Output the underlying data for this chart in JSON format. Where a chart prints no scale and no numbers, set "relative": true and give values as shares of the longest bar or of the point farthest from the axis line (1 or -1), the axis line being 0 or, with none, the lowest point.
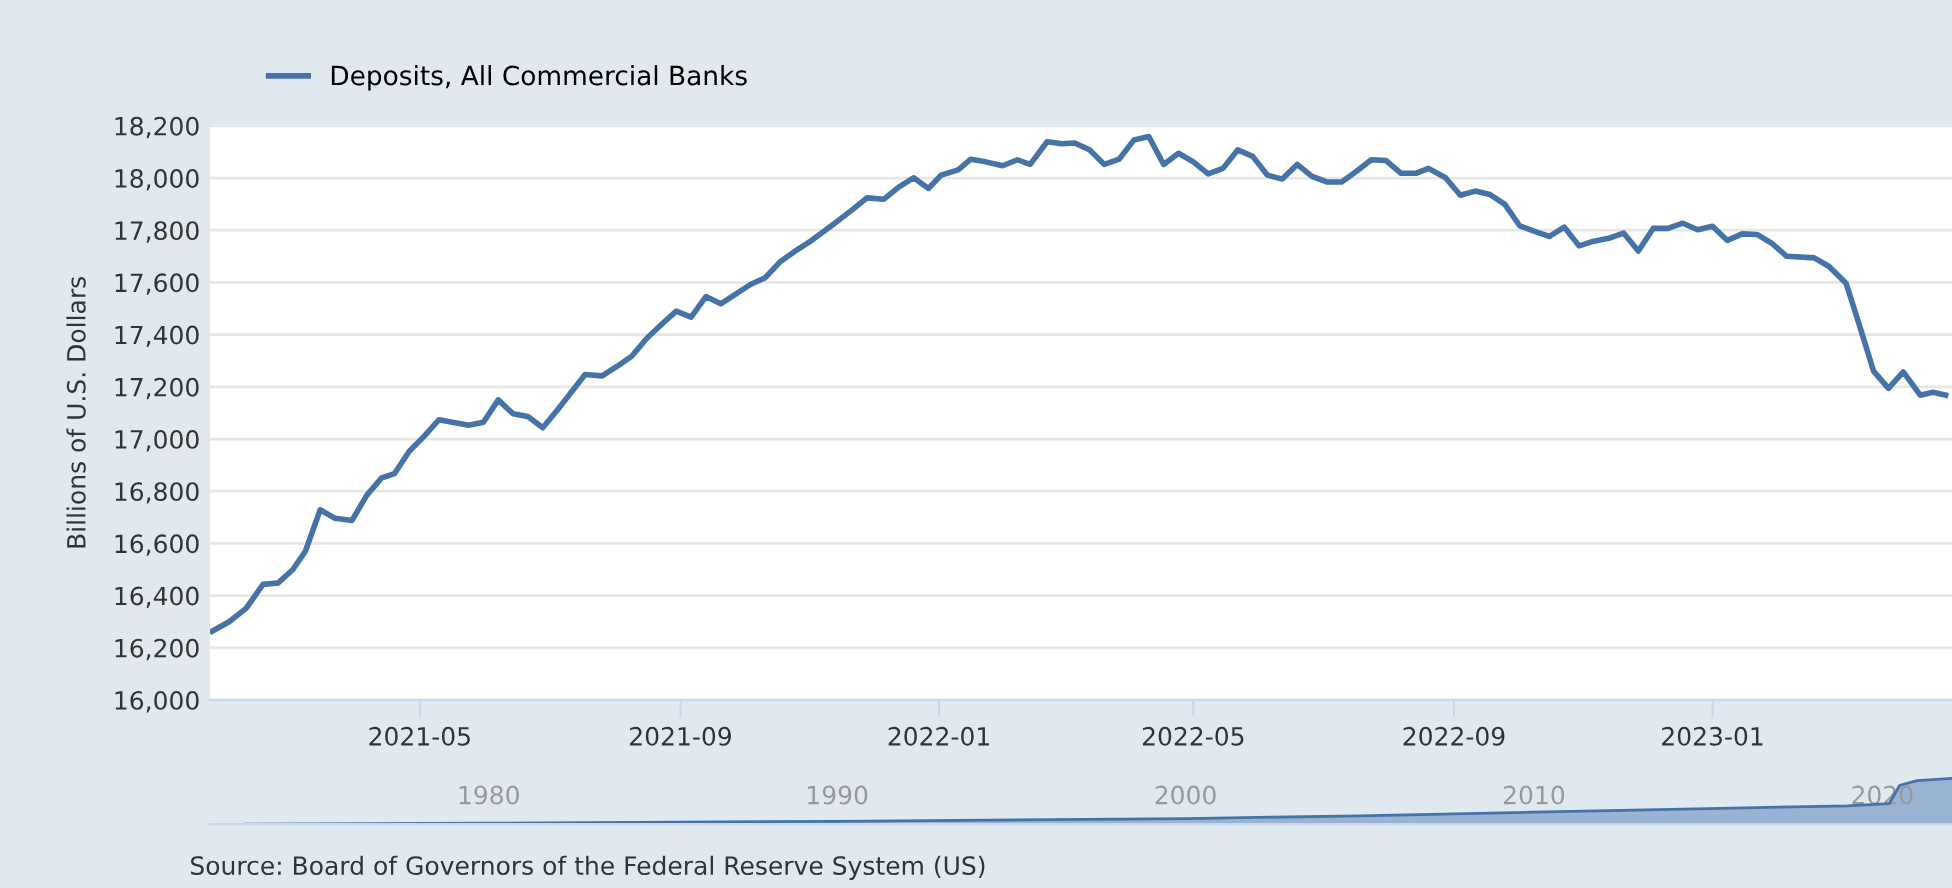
{
  "chart_data": [
    {
      "type": "line",
      "ylabel": "Billions of U.S. Dollars",
      "legend": "top left",
      "x": [
        "2021-01-23",
        "2021-01-31",
        "2021-02-08",
        "2021-02-16",
        "2021-02-23",
        "2021-03-02",
        "2021-03-08",
        "2021-03-15",
        "2021-03-22",
        "2021-03-30",
        "2021-04-06",
        "2021-04-13",
        "2021-04-19",
        "2021-04-26",
        "2021-05-03",
        "2021-05-10",
        "2021-05-24",
        "2021-05-31",
        "2021-06-07",
        "2021-06-14",
        "2021-06-21",
        "2021-06-28",
        "2021-07-05",
        "2021-07-18",
        "2021-07-26",
        "2021-08-02",
        "2021-08-09",
        "2021-08-16",
        "2021-08-23",
        "2021-08-30",
        "2021-09-06",
        "2021-09-13",
        "2021-09-20",
        "2021-10-04",
        "2021-10-11",
        "2021-10-18",
        "2021-10-26",
        "2021-11-01",
        "2021-11-12",
        "2021-11-21",
        "2021-11-28",
        "2021-12-06",
        "2021-12-13",
        "2021-12-20",
        "2021-12-27",
        "2022-01-02",
        "2022-01-10",
        "2022-01-16",
        "2022-01-23",
        "2022-01-31",
        "2022-02-07",
        "2022-02-13",
        "2022-02-21",
        "2022-02-28",
        "2022-03-06",
        "2022-03-13",
        "2022-03-20",
        "2022-03-27",
        "2022-04-03",
        "2022-04-10",
        "2022-04-17",
        "2022-04-24",
        "2022-05-01",
        "2022-05-08",
        "2022-05-15",
        "2022-05-22",
        "2022-05-29",
        "2022-06-05",
        "2022-06-12",
        "2022-06-19",
        "2022-06-26",
        "2022-07-03",
        "2022-07-10",
        "2022-07-17",
        "2022-07-24",
        "2022-07-31",
        "2022-08-07",
        "2022-08-14",
        "2022-08-20",
        "2022-08-28",
        "2022-09-04",
        "2022-09-11",
        "2022-09-18",
        "2022-09-25",
        "2022-10-02",
        "2022-10-09",
        "2022-10-16",
        "2022-10-23",
        "2022-10-30",
        "2022-11-06",
        "2022-11-13",
        "2022-11-20",
        "2022-11-27",
        "2022-12-04",
        "2022-12-11",
        "2022-12-18",
        "2022-12-25",
        "2023-01-01",
        "2023-01-08",
        "2023-01-15",
        "2023-01-22",
        "2023-01-29",
        "2023-02-05",
        "2023-02-18",
        "2023-02-25",
        "2023-03-05",
        "2023-03-11",
        "2023-03-18",
        "2023-03-25",
        "2023-04-01",
        "2023-04-09",
        "2023-04-15",
        "2023-04-21"
      ],
      "series": [
        {
          "name": "Deposits, All Commercial Banks",
          "color": "#4572a7",
          "values": [
            16264,
            16300,
            16351,
            16443,
            16448,
            16499,
            16570,
            16729,
            16696,
            16688,
            16785,
            16851,
            16867,
            16953,
            17010,
            17074,
            17053,
            17064,
            17150,
            17097,
            17086,
            17043,
            17112,
            17247,
            17242,
            17278,
            17317,
            17385,
            17439,
            17490,
            17467,
            17546,
            17518,
            17592,
            17618,
            17679,
            17725,
            17756,
            17822,
            17878,
            17924,
            17919,
            17965,
            18001,
            17960,
            18011,
            18031,
            18072,
            18062,
            18047,
            18070,
            18052,
            18139,
            18131,
            18134,
            18108,
            18052,
            18072,
            18146,
            18159,
            18052,
            18095,
            18062,
            18016,
            18037,
            18108,
            18083,
            18011,
            17996,
            18052,
            18006,
            17985,
            17985,
            18026,
            18070,
            18067,
            18018,
            18018,
            18037,
            18001,
            17934,
            17950,
            17937,
            17899,
            17817,
            17796,
            17776,
            17812,
            17740,
            17758,
            17769,
            17789,
            17720,
            17807,
            17807,
            17827,
            17802,
            17815,
            17761,
            17786,
            17784,
            17750,
            17700,
            17694,
            17661,
            17597,
            17444,
            17260,
            17194,
            17257,
            17168,
            17179,
            17168
          ]
        }
      ],
      "xlim": [
        "2021-01-22",
        "2023-04-24"
      ],
      "xticks": [
        "2021-05",
        "2021-09",
        "2022-01",
        "2022-05",
        "2022-09",
        "2023-01"
      ],
      "ylim": [
        16000,
        18200
      ],
      "yticks": [
        {
          "value": 16000,
          "label": "16,000"
        },
        {
          "value": 16200,
          "label": "16,200"
        },
        {
          "value": 16400,
          "label": "16,400"
        },
        {
          "value": 16600,
          "label": "16,600"
        },
        {
          "value": 16800,
          "label": "16,800"
        },
        {
          "value": 17000,
          "label": "17,000"
        },
        {
          "value": 17200,
          "label": "17,200"
        },
        {
          "value": 17400,
          "label": "17,400"
        },
        {
          "value": 17600,
          "label": "17,600"
        },
        {
          "value": 17800,
          "label": "17,800"
        },
        {
          "value": 18000,
          "label": "18,000"
        },
        {
          "value": 18200,
          "label": "18,200"
        }
      ],
      "grid": "y",
      "line_style": "solid",
      "marker": "none",
      "annotations": [
        "Source: Board of Governors of the Federal Reserve System (US)"
      ]
    },
    {
      "type": "area",
      "relative": true,
      "x": [
        1973,
        1980,
        1990,
        2000,
        2005,
        2010,
        2015,
        2019,
        2020.2,
        2020.5,
        2021,
        2022
      ],
      "series": [
        {
          "color": "#8aa5cc",
          "values": [
            0,
            0.02,
            0.06,
            0.12,
            0.18,
            0.26,
            0.34,
            0.4,
            0.45,
            0.85,
            0.95,
            1
          ]
        }
      ],
      "xlim": [
        1972,
        2022
      ],
      "xticks": [
        1980,
        1990,
        2000,
        2010,
        2020
      ],
      "tick_labels": "x"
    }
  ]
}
